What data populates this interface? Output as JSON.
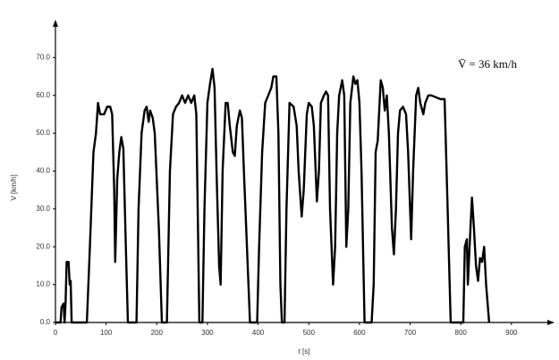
{
  "chart_data": {
    "type": "line",
    "y_label": "V [km/h]",
    "x_label": "t [s]",
    "annotation": "V̄ = 36 km/h",
    "xlim": [
      0,
      985
    ],
    "ylim": [
      0,
      80
    ],
    "xticks": [
      0,
      100,
      200,
      300,
      400,
      500,
      600,
      700,
      800,
      900
    ],
    "yticks": [
      {
        "value": 0,
        "label": "0.0"
      },
      {
        "value": 10,
        "label": "10.0"
      },
      {
        "value": 20,
        "label": "20.0"
      },
      {
        "value": 30,
        "label": "30.0"
      },
      {
        "value": 40,
        "label": "40.0"
      },
      {
        "value": 50,
        "label": "50.0"
      },
      {
        "value": 60,
        "label": "60.0"
      },
      {
        "value": 70,
        "label": "70.0"
      }
    ],
    "color": "#000000",
    "x": [
      0,
      10,
      12,
      16,
      18,
      20,
      22,
      26,
      28,
      30,
      32,
      62,
      68,
      75,
      80,
      84,
      88,
      96,
      102,
      108,
      112,
      116,
      118,
      122,
      126,
      130,
      134,
      139,
      143,
      160,
      164,
      170,
      176,
      180,
      184,
      187,
      192,
      196,
      204,
      210,
      220,
      226,
      232,
      238,
      244,
      250,
      256,
      262,
      268,
      274,
      278,
      284,
      290,
      294,
      300,
      305,
      310,
      314,
      318,
      323,
      326,
      330,
      336,
      340,
      344,
      350,
      354,
      358,
      364,
      368,
      372,
      378,
      384,
      398,
      402,
      408,
      414,
      420,
      426,
      430,
      436,
      440,
      444,
      447,
      452,
      456,
      462,
      470,
      476,
      480,
      486,
      490,
      496,
      500,
      506,
      510,
      516,
      520,
      524,
      530,
      534,
      538,
      542,
      548,
      552,
      556,
      560,
      566,
      570,
      574,
      578,
      582,
      588,
      592,
      596,
      600,
      604,
      610,
      624,
      628,
      632,
      636,
      642,
      646,
      650,
      654,
      658,
      664,
      668,
      672,
      676,
      680,
      686,
      692,
      696,
      702,
      706,
      712,
      716,
      720,
      726,
      730,
      736,
      742,
      760,
      768,
      774,
      780,
      805,
      808,
      812,
      814,
      818,
      822,
      826,
      830,
      834,
      838,
      842,
      846,
      850,
      856
    ],
    "values": [
      0,
      0,
      4,
      5,
      0,
      5,
      16,
      16,
      10,
      11,
      0,
      0,
      20,
      45,
      50,
      58,
      55,
      55,
      57,
      57,
      55,
      35,
      16,
      38,
      45,
      49,
      46,
      20,
      0,
      0,
      30,
      50,
      56,
      57,
      53,
      56,
      54,
      50,
      25,
      0,
      0,
      40,
      55,
      57,
      58,
      60,
      58,
      60,
      58,
      60,
      55,
      0,
      0,
      30,
      58,
      63,
      67,
      62,
      40,
      15,
      10,
      40,
      58,
      58,
      52,
      45,
      44,
      52,
      56,
      54,
      40,
      20,
      0,
      0,
      20,
      45,
      58,
      60,
      62,
      65,
      65,
      50,
      10,
      0,
      0,
      30,
      58,
      57,
      52,
      40,
      28,
      35,
      55,
      58,
      57,
      52,
      32,
      40,
      58,
      60,
      61,
      60,
      30,
      10,
      20,
      50,
      60,
      64,
      60,
      20,
      30,
      58,
      65,
      63,
      64,
      58,
      40,
      0,
      0,
      10,
      45,
      48,
      64,
      62,
      56,
      60,
      50,
      25,
      18,
      30,
      50,
      56,
      57,
      55,
      45,
      22,
      40,
      60,
      62,
      58,
      55,
      58,
      60,
      60,
      59,
      59,
      30,
      0,
      0,
      20,
      22,
      10,
      22,
      33,
      25,
      15,
      11,
      17,
      16,
      20,
      10,
      0
    ]
  }
}
